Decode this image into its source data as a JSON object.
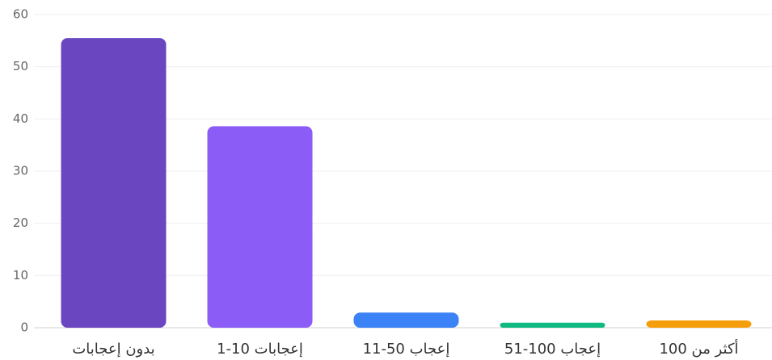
{
  "chart_data": {
    "type": "bar",
    "categories": [
      "بدون إعجابات",
      "1-10 إعجابات",
      "11-50 إعجاب",
      "51-100 إعجاب",
      "أكثر من 100"
    ],
    "values": [
      55.5,
      38.6,
      2.9,
      0.5,
      1.4
    ],
    "colors": [
      "#6b46c1",
      "#8b5cf6",
      "#3b82f6",
      "#10b981",
      "#f59e0b"
    ],
    "ylim": [
      0,
      60
    ],
    "yticks": [
      0,
      10,
      20,
      30,
      40,
      50,
      60
    ],
    "grid": true
  }
}
